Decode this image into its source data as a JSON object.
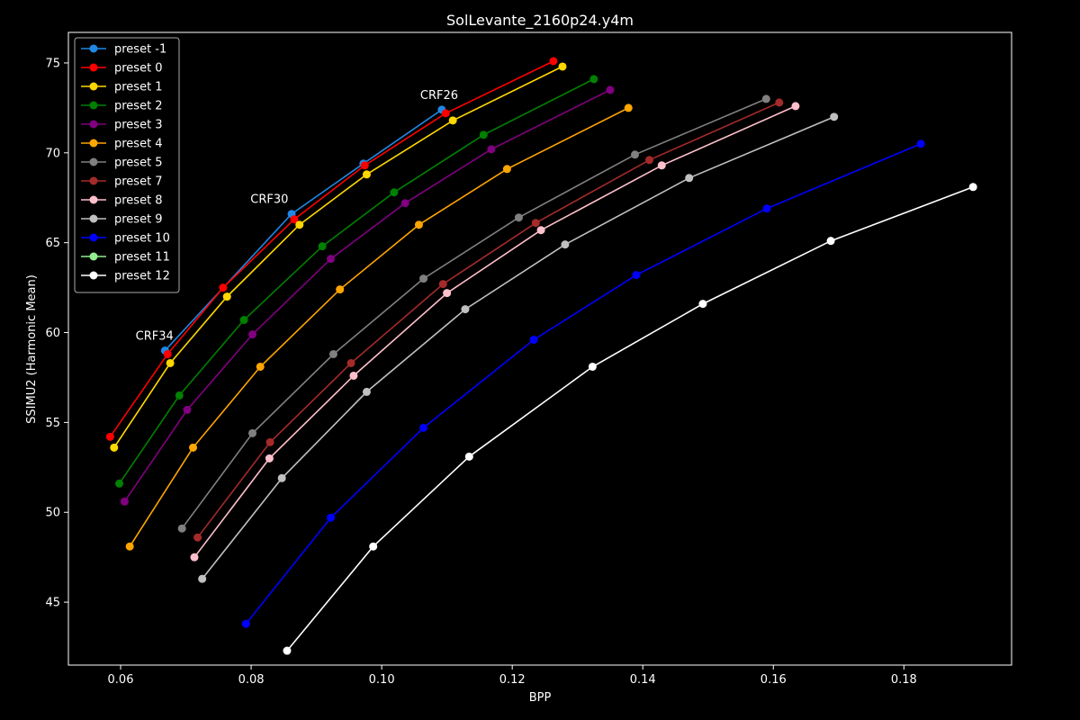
{
  "chart_data": {
    "type": "line",
    "title": "SolLevante_2160p24.y4m",
    "xlabel": "BPP",
    "ylabel": "SSIMU2 (Harmonic Mean)",
    "xlim": [
      0.052,
      0.1965
    ],
    "ylim": [
      41.5,
      76.7
    ],
    "xticks": [
      0.06,
      0.08,
      0.1,
      0.12,
      0.14,
      0.16,
      0.18
    ],
    "xtick_labels": [
      "0.06",
      "0.08",
      "0.10",
      "0.12",
      "0.14",
      "0.16",
      "0.18"
    ],
    "yticks": [
      45,
      50,
      55,
      60,
      65,
      70,
      75
    ],
    "ytick_labels": [
      "45",
      "50",
      "55",
      "60",
      "65",
      "70",
      "75"
    ],
    "grid": false,
    "legend_position": "top-left",
    "series": [
      {
        "name": "preset -1",
        "color": "#1f88e5",
        "x": [
          0.0668,
          0.0862,
          0.0972,
          0.1092
        ],
        "y": [
          59.0,
          66.6,
          69.4,
          72.4
        ]
      },
      {
        "name": "preset 0",
        "color": "#ff0000",
        "x": [
          0.0584,
          0.0672,
          0.0757,
          0.0866,
          0.0974,
          0.1098,
          0.1263
        ],
        "y": [
          54.2,
          58.8,
          62.5,
          66.3,
          69.3,
          72.2,
          75.1
        ]
      },
      {
        "name": "preset 1",
        "color": "#ffd700",
        "x": [
          0.059,
          0.0676,
          0.0763,
          0.0874,
          0.0977,
          0.1109,
          0.1277
        ],
        "y": [
          53.6,
          58.3,
          62.0,
          66.0,
          68.8,
          71.8,
          74.8
        ]
      },
      {
        "name": "preset 2",
        "color": "#008000",
        "x": [
          0.0598,
          0.069,
          0.0789,
          0.0909,
          0.1019,
          0.1156,
          0.1325
        ],
        "y": [
          51.6,
          56.5,
          60.7,
          64.8,
          67.8,
          71.0,
          74.1
        ]
      },
      {
        "name": "preset 3",
        "color": "#800080",
        "x": [
          0.0606,
          0.0702,
          0.0802,
          0.0922,
          0.1036,
          0.1168,
          0.135
        ],
        "y": [
          50.6,
          55.7,
          59.9,
          64.1,
          67.2,
          70.2,
          73.5
        ]
      },
      {
        "name": "preset 4",
        "color": "#ffa500",
        "x": [
          0.0614,
          0.0711,
          0.0814,
          0.0936,
          0.1057,
          0.1192,
          0.1378
        ],
        "y": [
          48.1,
          53.6,
          58.1,
          62.4,
          66.0,
          69.1,
          72.5
        ]
      },
      {
        "name": "preset 5",
        "color": "#808080",
        "x": [
          0.0694,
          0.0802,
          0.0926,
          0.1064,
          0.121,
          0.1388,
          0.1589
        ],
        "y": [
          49.1,
          54.4,
          58.8,
          63.0,
          66.4,
          69.9,
          73.0
        ]
      },
      {
        "name": "preset 7",
        "color": "#a52a2a",
        "x": [
          0.0718,
          0.0829,
          0.0953,
          0.1094,
          0.1236,
          0.141,
          0.1609
        ],
        "y": [
          48.6,
          53.9,
          58.3,
          62.7,
          66.1,
          69.6,
          72.8
        ]
      },
      {
        "name": "preset 8",
        "color": "#ffc0cb",
        "x": [
          0.0713,
          0.0828,
          0.0957,
          0.11,
          0.1244,
          0.1429,
          0.1634
        ],
        "y": [
          47.5,
          53.0,
          57.6,
          62.2,
          65.7,
          69.3,
          72.6
        ]
      },
      {
        "name": "preset 9",
        "color": "#c0c0c0",
        "x": [
          0.0725,
          0.0847,
          0.0977,
          0.1128,
          0.1281,
          0.1471,
          0.1693
        ],
        "y": [
          46.3,
          51.9,
          56.7,
          61.3,
          64.9,
          68.6,
          72.0
        ]
      },
      {
        "name": "preset 10",
        "color": "#0000ff",
        "x": [
          0.0792,
          0.0922,
          0.1064,
          0.1233,
          0.139,
          0.159,
          0.1826
        ],
        "y": [
          43.8,
          49.7,
          54.7,
          59.6,
          63.2,
          66.9,
          70.5
        ]
      },
      {
        "name": "preset 11",
        "color": "#90ee90",
        "x": [],
        "y": []
      },
      {
        "name": "preset 12",
        "color": "#ffffff",
        "x": [
          0.0855,
          0.0987,
          0.1134,
          0.1323,
          0.1492,
          0.1688,
          0.1906
        ],
        "y": [
          42.3,
          48.1,
          53.1,
          58.1,
          61.6,
          65.1,
          68.1
        ]
      }
    ],
    "annotations": [
      {
        "text": "CRF34",
        "x": 0.0652,
        "y": 59.6
      },
      {
        "text": "CRF30",
        "x": 0.0828,
        "y": 67.2
      },
      {
        "text": "CRF26",
        "x": 0.1088,
        "y": 73.0
      }
    ]
  }
}
